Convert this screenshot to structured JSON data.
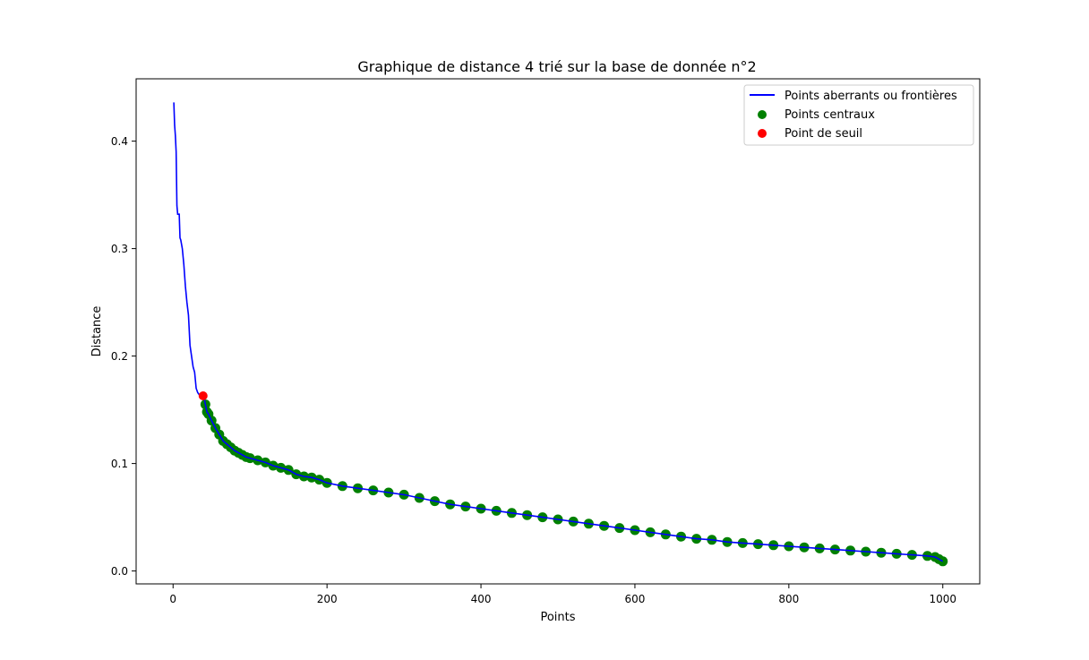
{
  "chart_data": {
    "type": "line",
    "title": "Graphique de distance 4 trié sur la base de donnée n°2",
    "xlabel": "Points",
    "ylabel": "Distance",
    "xlim": [
      -48,
      1048
    ],
    "ylim": [
      -0.012,
      0.458
    ],
    "x_ticks": [
      0,
      200,
      400,
      600,
      800,
      1000
    ],
    "y_ticks": [
      0.0,
      0.1,
      0.2,
      0.3,
      0.4
    ],
    "x_tick_labels": [
      "0",
      "200",
      "400",
      "600",
      "800",
      "1000"
    ],
    "y_tick_labels": [
      "0.0",
      "0.1",
      "0.2",
      "0.3",
      "0.4"
    ],
    "legend_position": "top-right",
    "grid": false,
    "series": [
      {
        "name": "Points aberrants ou frontières",
        "kind": "line",
        "color": "#0000ff",
        "x": [
          1,
          2,
          3,
          4,
          5,
          6,
          8,
          9,
          10,
          12,
          14,
          16,
          18,
          20,
          22,
          24,
          26,
          28,
          30,
          32,
          34,
          36,
          38,
          40,
          42,
          44,
          46,
          50,
          55,
          60,
          65,
          70,
          75,
          80,
          85,
          90,
          95,
          100,
          110,
          120,
          130,
          140,
          150,
          160,
          170,
          180,
          190,
          200,
          220,
          240,
          260,
          280,
          300,
          320,
          340,
          360,
          380,
          400,
          420,
          440,
          460,
          480,
          500,
          520,
          540,
          560,
          580,
          600,
          620,
          640,
          660,
          680,
          700,
          720,
          740,
          760,
          780,
          800,
          820,
          840,
          860,
          880,
          900,
          920,
          940,
          960,
          980,
          990,
          995,
          1000
        ],
        "y": [
          0.436,
          0.415,
          0.405,
          0.39,
          0.34,
          0.332,
          0.332,
          0.31,
          0.308,
          0.3,
          0.285,
          0.265,
          0.25,
          0.238,
          0.21,
          0.2,
          0.19,
          0.185,
          0.17,
          0.166,
          0.164,
          0.163,
          0.163,
          0.162,
          0.155,
          0.148,
          0.146,
          0.14,
          0.133,
          0.127,
          0.121,
          0.118,
          0.115,
          0.112,
          0.11,
          0.108,
          0.106,
          0.105,
          0.103,
          0.101,
          0.098,
          0.096,
          0.094,
          0.09,
          0.088,
          0.087,
          0.085,
          0.082,
          0.079,
          0.077,
          0.075,
          0.073,
          0.071,
          0.068,
          0.065,
          0.062,
          0.06,
          0.058,
          0.056,
          0.054,
          0.052,
          0.05,
          0.048,
          0.046,
          0.044,
          0.042,
          0.04,
          0.038,
          0.036,
          0.034,
          0.032,
          0.03,
          0.029,
          0.027,
          0.026,
          0.025,
          0.024,
          0.023,
          0.022,
          0.021,
          0.02,
          0.019,
          0.018,
          0.017,
          0.016,
          0.015,
          0.014,
          0.013,
          0.011,
          0.009
        ]
      },
      {
        "name": "Points centraux",
        "kind": "scatter",
        "color": "#008000",
        "x": [
          42,
          44,
          46,
          50,
          55,
          60,
          65,
          70,
          75,
          80,
          85,
          90,
          95,
          100,
          110,
          120,
          130,
          140,
          150,
          160,
          170,
          180,
          190,
          200,
          220,
          240,
          260,
          280,
          300,
          320,
          340,
          360,
          380,
          400,
          420,
          440,
          460,
          480,
          500,
          520,
          540,
          560,
          580,
          600,
          620,
          640,
          660,
          680,
          700,
          720,
          740,
          760,
          780,
          800,
          820,
          840,
          860,
          880,
          900,
          920,
          940,
          960,
          980,
          990,
          995,
          1000
        ],
        "y": [
          0.155,
          0.148,
          0.146,
          0.14,
          0.133,
          0.127,
          0.121,
          0.118,
          0.115,
          0.112,
          0.11,
          0.108,
          0.106,
          0.105,
          0.103,
          0.101,
          0.098,
          0.096,
          0.094,
          0.09,
          0.088,
          0.087,
          0.085,
          0.082,
          0.079,
          0.077,
          0.075,
          0.073,
          0.071,
          0.068,
          0.065,
          0.062,
          0.06,
          0.058,
          0.056,
          0.054,
          0.052,
          0.05,
          0.048,
          0.046,
          0.044,
          0.042,
          0.04,
          0.038,
          0.036,
          0.034,
          0.032,
          0.03,
          0.029,
          0.027,
          0.026,
          0.025,
          0.024,
          0.023,
          0.022,
          0.021,
          0.02,
          0.019,
          0.018,
          0.017,
          0.016,
          0.015,
          0.014,
          0.013,
          0.011,
          0.009
        ]
      },
      {
        "name": "Point de seuil",
        "kind": "scatter",
        "color": "#ff0000",
        "x": [
          39
        ],
        "y": [
          0.163
        ]
      }
    ]
  }
}
